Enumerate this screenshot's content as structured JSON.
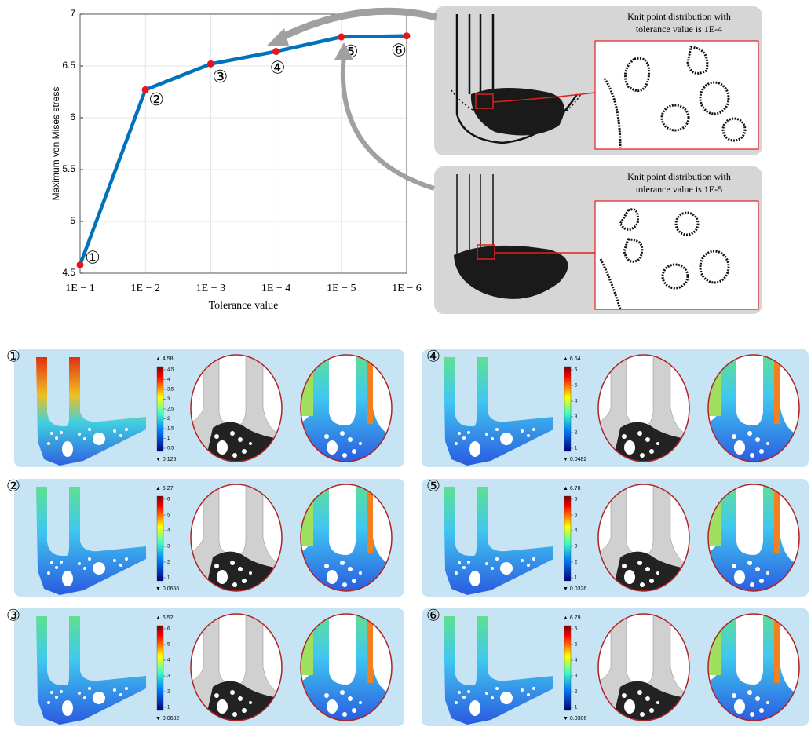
{
  "chart_data": {
    "type": "line",
    "x_label": "Tolerance value",
    "y_label": "Maximum von Mises stress",
    "categories": [
      "1E − 1",
      "1E − 2",
      "1E − 3",
      "1E − 4",
      "1E − 5",
      "1E − 6"
    ],
    "values": [
      4.58,
      6.27,
      6.52,
      6.64,
      6.78,
      6.79
    ],
    "color": "#0072bd",
    "marker_color": "#e8141c",
    "ylim": [
      4.5,
      7
    ],
    "yticks": [
      4.5,
      5,
      5.5,
      6,
      6.5,
      7
    ],
    "grid": true,
    "annotations": [
      "①",
      "②",
      "③",
      "④",
      "⑤",
      "⑥"
    ]
  },
  "insets": [
    {
      "title_lines": [
        "Knit point distribution with",
        "tolerance value is 1E-4"
      ]
    },
    {
      "title_lines": [
        "Knit point distribution with",
        "tolerance value is 1E-5"
      ]
    }
  ],
  "panels": [
    {
      "label": "①",
      "max": "▲ 4.58",
      "min": "▼ 0.125",
      "ticks": [
        "4.5",
        "4",
        "3.5",
        "3",
        "2.5",
        "2",
        "1.5",
        "1",
        "0.5"
      ]
    },
    {
      "label": "②",
      "max": "▲ 6.27",
      "min": "▼ 0.0656",
      "ticks": [
        "6",
        "5",
        "4",
        "3",
        "2",
        "1"
      ]
    },
    {
      "label": "③",
      "max": "▲ 6.52",
      "min": "▼ 0.0682",
      "ticks": [
        "6",
        "5",
        "4",
        "3",
        "2",
        "1"
      ]
    },
    {
      "label": "④",
      "max": "▲ 6.64",
      "min": "▼ 0.0482",
      "ticks": [
        "6",
        "5",
        "4",
        "3",
        "2",
        "1"
      ]
    },
    {
      "label": "⑤",
      "max": "▲ 6.78",
      "min": "▼ 0.0326",
      "ticks": [
        "6",
        "5",
        "4",
        "3",
        "2",
        "1"
      ]
    },
    {
      "label": "⑥",
      "max": "▲ 6.79",
      "min": "▼ 0.0306",
      "ticks": [
        "6",
        "5",
        "4",
        "3",
        "2",
        "1"
      ]
    }
  ]
}
